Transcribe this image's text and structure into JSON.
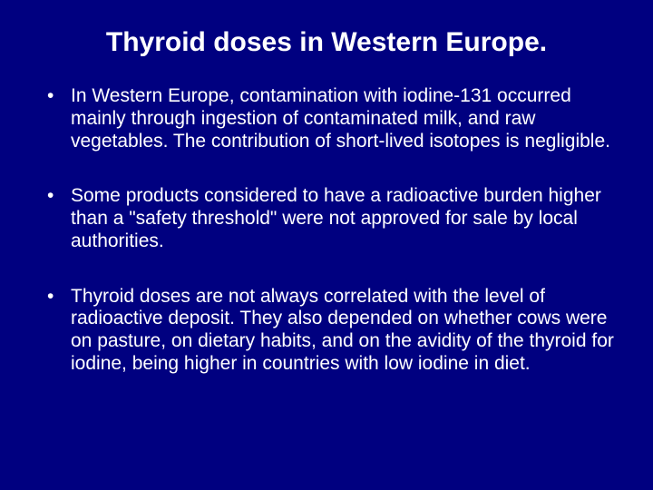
{
  "slide": {
    "background_color": "#000080",
    "text_color": "#ffffff",
    "font_family": "Arial",
    "title": {
      "text": "Thyroid doses in Western Europe.",
      "fontsize": 30,
      "weight": "bold",
      "align": "center"
    },
    "bullets": {
      "fontsize": 21,
      "line_height": 1.18,
      "marker": "•",
      "items": [
        "In Western Europe, contamination with iodine-131 occurred mainly through ingestion of contaminated milk, and raw vegetables. The contribution of short-lived isotopes is negligible.",
        "Some products considered to have a radioactive burden higher than a \"safety threshold\" were not approved for sale by local authorities.",
        "Thyroid doses are not always correlated with the level of radioactive deposit. They also depended on whether cows were on pasture, on dietary habits, and on the avidity of the thyroid for iodine, being higher in countries with low iodine in diet."
      ]
    }
  }
}
